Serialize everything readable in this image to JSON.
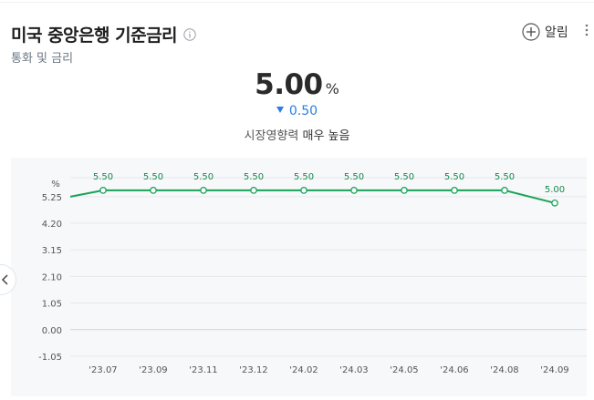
{
  "header": {
    "title": "미국 중앙은행 기준금리",
    "subtitle": "통화 및 금리",
    "alert_label": "알림"
  },
  "summary": {
    "value": "5.00",
    "unit": "%",
    "change": "0.50",
    "change_direction": "down",
    "impact_label": "시장영향력",
    "impact_level": "매우 높음"
  },
  "colors": {
    "line": "#1aa25a",
    "accent_blue": "#2b7de1",
    "zero_line": "#c9d3e6"
  },
  "chart_data": {
    "type": "line",
    "ylabel": "%",
    "categories": [
      "'23.07",
      "'23.09",
      "'23.11",
      "'23.12",
      "'24.02",
      "'24.03",
      "'24.05",
      "'24.06",
      "'24.08",
      "'24.09"
    ],
    "series": [
      {
        "values": [
          5.5,
          5.5,
          5.5,
          5.5,
          5.5,
          5.5,
          5.5,
          5.5,
          5.5,
          5.0
        ]
      }
    ],
    "left_edge_value": 5.25,
    "ylim": [
      -1.05,
      6.0
    ],
    "yticks": [
      "5.25",
      "4.20",
      "3.15",
      "2.10",
      "1.05",
      "0.00",
      "-1.05"
    ],
    "ytick_values": [
      5.25,
      4.2,
      3.15,
      2.1,
      1.05,
      0.0,
      -1.05
    ],
    "data_labels": [
      "5.50",
      "5.50",
      "5.50",
      "5.50",
      "5.50",
      "5.50",
      "5.50",
      "5.50",
      "5.50",
      "5.00"
    ],
    "grid": true
  }
}
